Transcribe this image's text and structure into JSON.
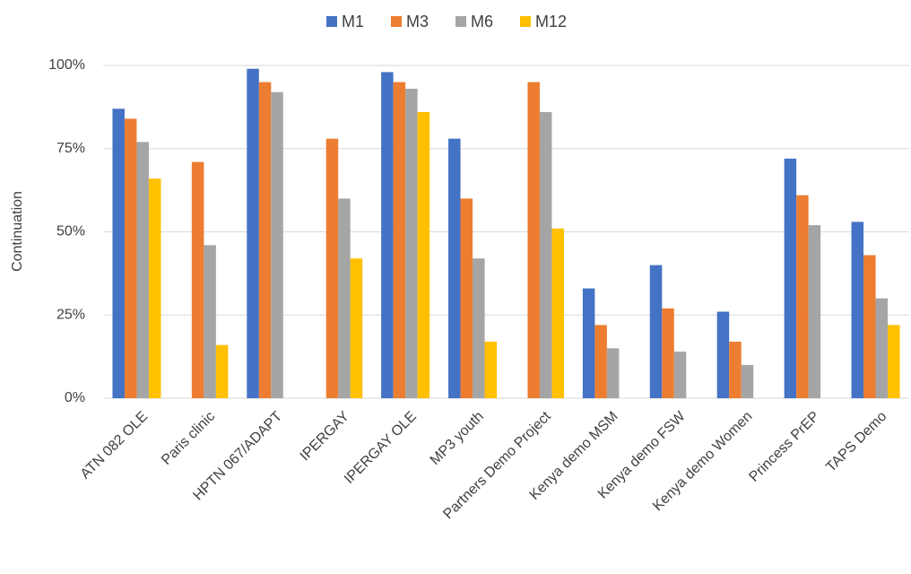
{
  "chart_data": {
    "type": "bar",
    "y_label": "Continuation",
    "categories": [
      "ATN 082 OLE",
      "Paris clinic",
      "HPTN 067/ADAPT",
      "IPERGAY",
      "IPERGAY OLE",
      "MP3 youth",
      "Partners Demo Project",
      "Kenya demo MSM",
      "Kenya demo FSW",
      "Kenya demo Women",
      "Princess PrEP",
      "TAPS Demo"
    ],
    "series": [
      {
        "name": "M1",
        "color": "#4472c4",
        "values": [
          87,
          null,
          99,
          null,
          98,
          78,
          null,
          33,
          40,
          26,
          72,
          53
        ]
      },
      {
        "name": "M3",
        "color": "#ed7d31",
        "values": [
          84,
          71,
          95,
          78,
          95,
          60,
          95,
          22,
          27,
          17,
          61,
          43
        ]
      },
      {
        "name": "M6",
        "color": "#a5a5a5",
        "values": [
          77,
          46,
          92,
          60,
          93,
          42,
          86,
          15,
          14,
          10,
          52,
          30
        ]
      },
      {
        "name": "M12",
        "color": "#ffc000",
        "values": [
          66,
          16,
          null,
          42,
          86,
          17,
          51,
          null,
          null,
          null,
          null,
          22
        ]
      }
    ],
    "ylim": [
      0,
      100
    ],
    "yticks": [
      {
        "value": 0,
        "label": "0%"
      },
      {
        "value": 25,
        "label": "25%"
      },
      {
        "value": 50,
        "label": "50%"
      },
      {
        "value": 75,
        "label": "75%"
      },
      {
        "value": 100,
        "label": "100%"
      }
    ],
    "grid": true,
    "legend": "top"
  }
}
